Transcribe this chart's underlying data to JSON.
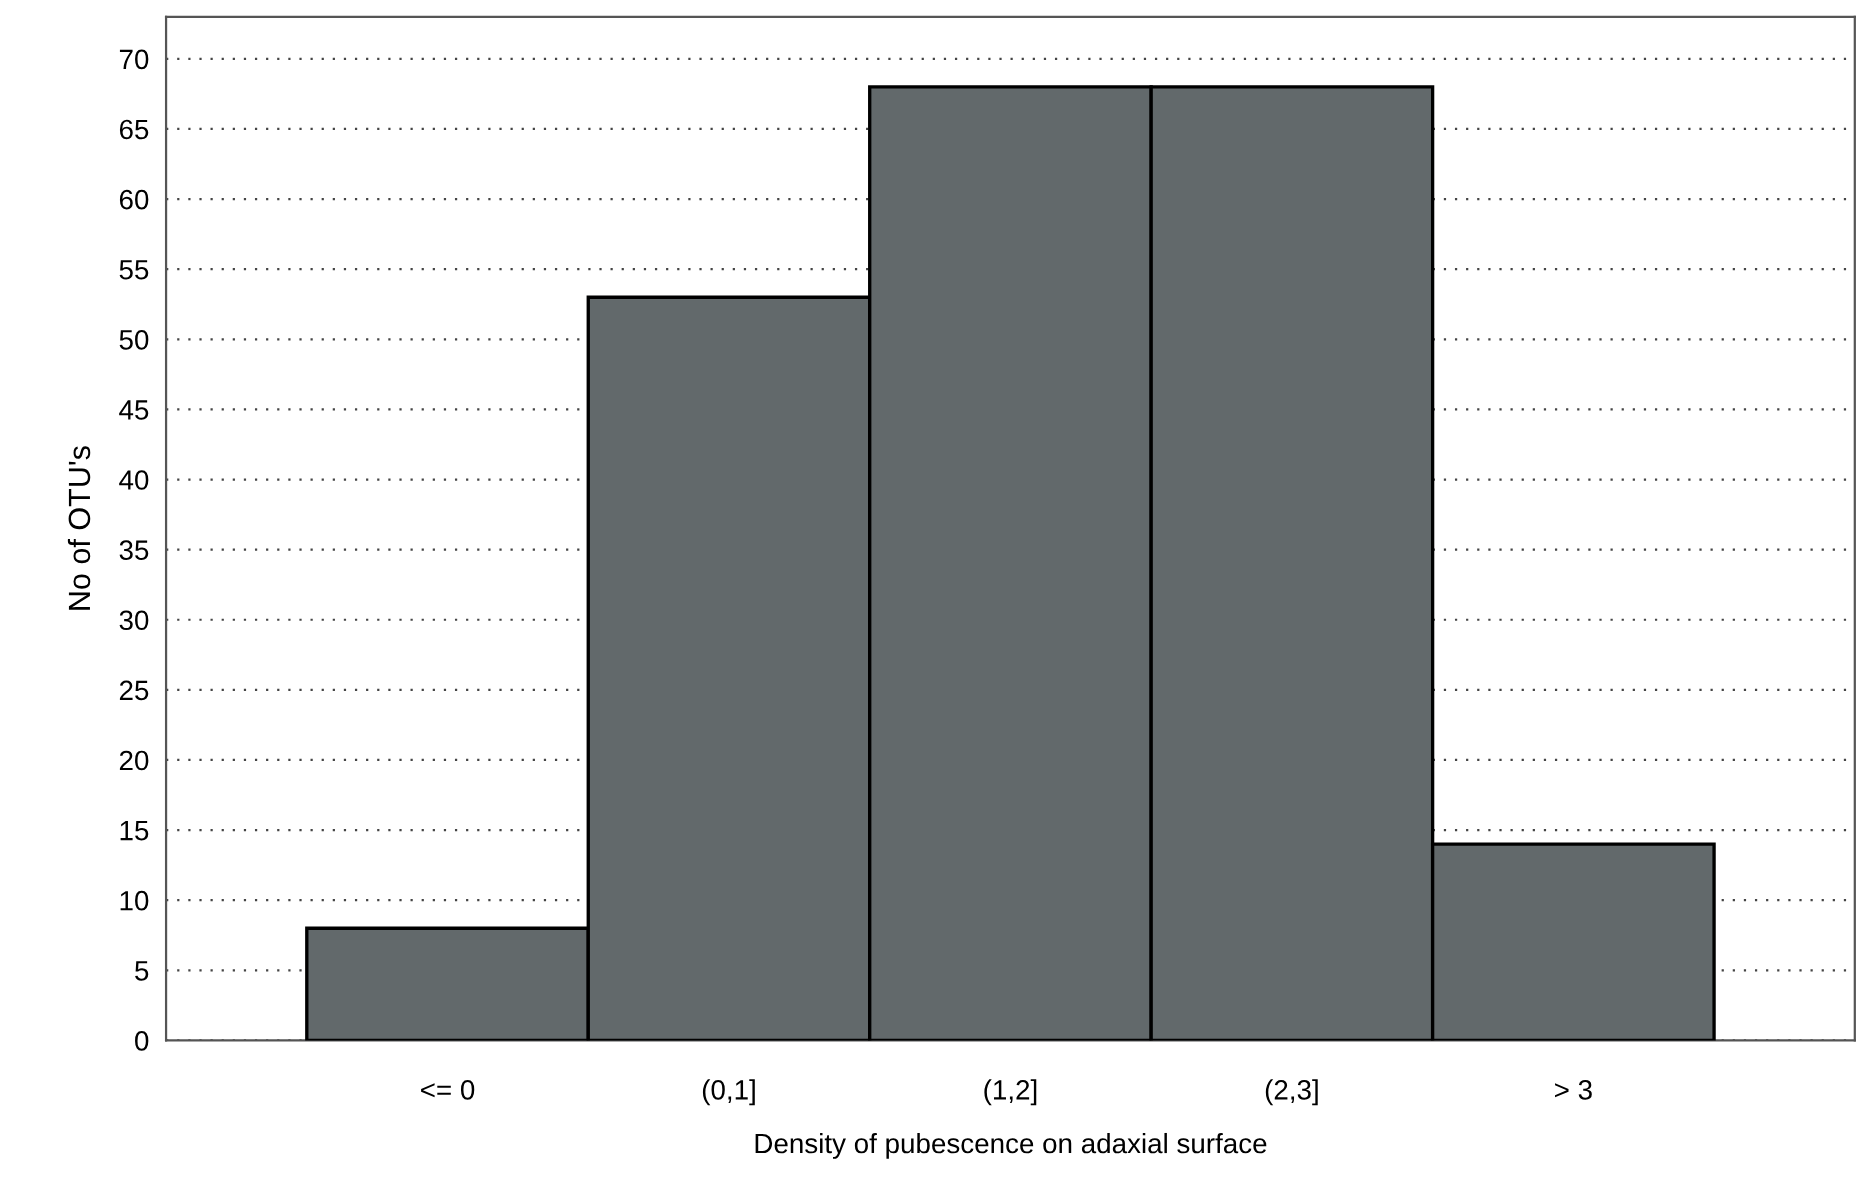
{
  "chart_data": {
    "type": "bar",
    "xlabel": "Density of pubescence on adaxial surface",
    "ylabel": "No of OTU's",
    "categories": [
      "<= 0",
      "(0,1]",
      "(1,2]",
      "(2,3]",
      "> 3"
    ],
    "values": [
      8,
      53,
      68,
      68,
      14
    ],
    "color": "#62696b",
    "ylim": [
      0,
      73
    ],
    "yticks": [
      0,
      5,
      10,
      15,
      20,
      25,
      30,
      35,
      40,
      45,
      50,
      55,
      60,
      65,
      70
    ],
    "grid": "y"
  }
}
